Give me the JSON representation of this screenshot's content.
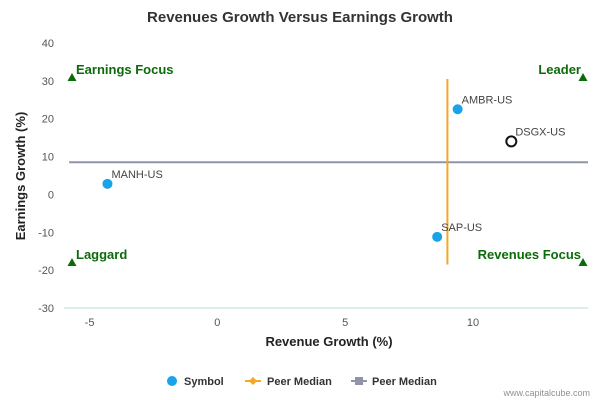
{
  "chart_data": {
    "type": "scatter",
    "title": "Revenues Growth Versus Earnings Growth",
    "xlabel": "Revenue Growth (%)",
    "ylabel": "Earnings Growth (%)",
    "xlim": [
      -6,
      14.5
    ],
    "ylim": [
      -30,
      40
    ],
    "x_ticks": [
      -5,
      0,
      5,
      10
    ],
    "y_ticks": [
      40,
      30,
      20,
      10,
      0,
      -10,
      -20,
      -30
    ],
    "grid": false,
    "points": [
      {
        "label": "MANH-US",
        "x": -4.3,
        "y": 2.8,
        "style": "filled"
      },
      {
        "label": "AMBR-US",
        "x": 9.4,
        "y": 22.5,
        "style": "filled"
      },
      {
        "label": "SAP-US",
        "x": 8.6,
        "y": -11.2,
        "style": "filled"
      },
      {
        "label": "DSGX-US",
        "x": 11.5,
        "y": 14.0,
        "style": "hollow"
      }
    ],
    "peer_median_revenue_growth": 9.0,
    "peer_median_earnings_growth": 8.5,
    "peer_median_vertical_range": [
      -18.5,
      30.5
    ],
    "quadrants": {
      "top_left": "Earnings Focus",
      "top_right": "Leader",
      "bottom_left": "Laggard",
      "bottom_right": "Revenues Focus"
    },
    "legend": {
      "position": "bottom",
      "items": [
        {
          "label": "Symbol",
          "marker": "circle",
          "color": "#1aa3e8"
        },
        {
          "label": "Peer Median",
          "marker": "line-diamond",
          "color": "#f5a623"
        },
        {
          "label": "Peer Median",
          "marker": "line-square",
          "color": "#8e95a8"
        }
      ]
    }
  },
  "colors": {
    "point": "#1aa3e8",
    "vertical_median": "#f5a623",
    "horizontal_median": "#8e95a8",
    "quadrant_text": "#0b6b0b",
    "axis_line": "#b7dfd8"
  },
  "credit": "www.capitalcube.com"
}
